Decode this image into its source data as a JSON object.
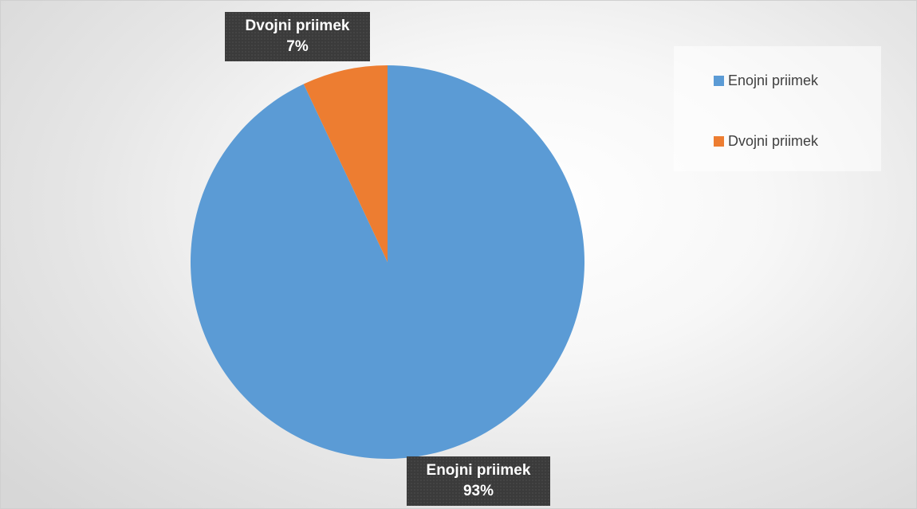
{
  "chart_data": {
    "type": "pie",
    "categories": [
      "Enojni priimek",
      "Dvojni priimek"
    ],
    "values": [
      93,
      7
    ],
    "unit": "%",
    "colors": [
      "#5b9bd5",
      "#ed7d31"
    ],
    "legend_position": "top-right",
    "data_labels": [
      {
        "category": "Dvojni priimek",
        "value": "7%"
      },
      {
        "category": "Enojni priimek",
        "value": "93%"
      }
    ]
  }
}
